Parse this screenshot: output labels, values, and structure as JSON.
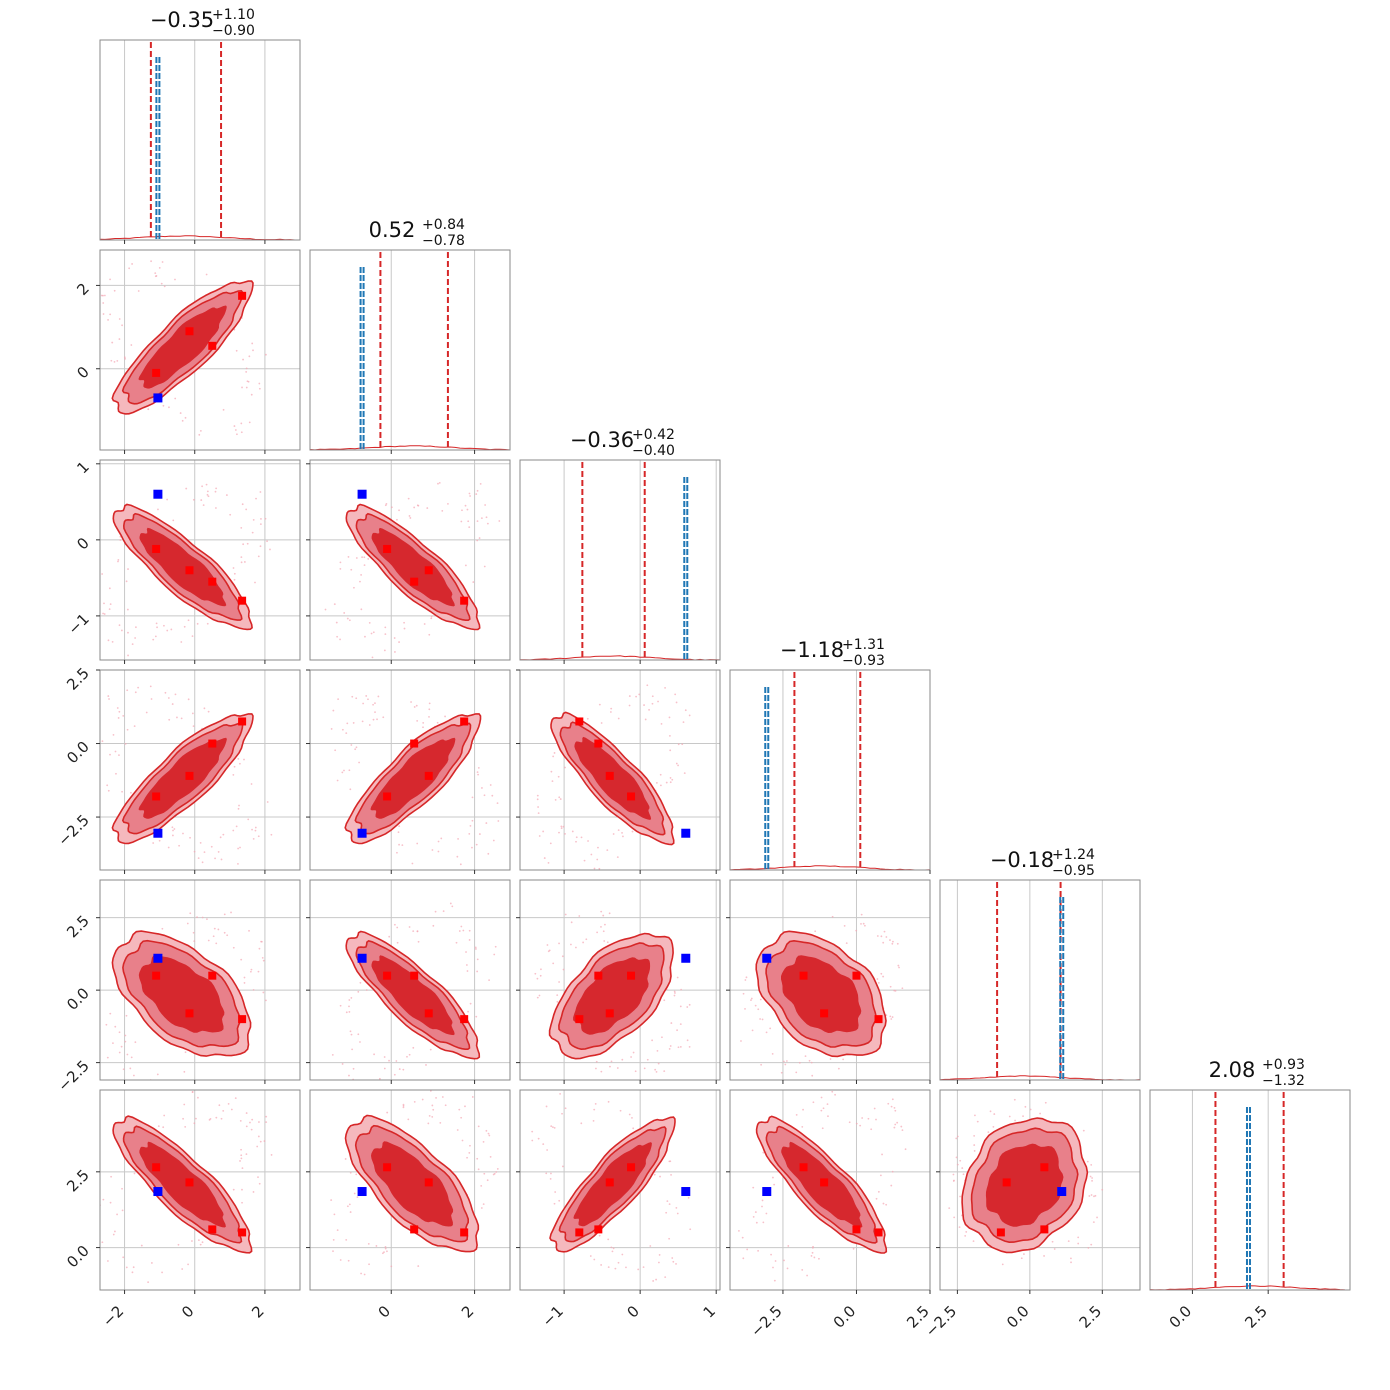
{
  "chart_data": {
    "type": "corner",
    "grid": true,
    "parameters": [
      {
        "title_median": "−0.35",
        "title_plus": "+1.10",
        "title_minus": "−0.90",
        "median": -0.35,
        "err_plus": 1.1,
        "err_minus": 0.9,
        "truth": -1.05,
        "range": [
          -2.7,
          3.0
        ]
      },
      {
        "title_median": "0.52",
        "title_plus": "+0.84",
        "title_minus": "−0.78",
        "median": 0.52,
        "err_plus": 0.84,
        "err_minus": 0.78,
        "truth": -0.7,
        "range": [
          -1.95,
          2.85
        ]
      },
      {
        "title_median": "−0.36",
        "title_plus": "+0.42",
        "title_minus": "−0.40",
        "median": -0.36,
        "err_plus": 0.42,
        "err_minus": 0.4,
        "truth": 0.6,
        "range": [
          -1.58,
          1.05
        ]
      },
      {
        "title_median": "−1.18",
        "title_plus": "+1.31",
        "title_minus": "−0.93",
        "median": -1.18,
        "err_plus": 1.31,
        "err_minus": 0.93,
        "truth": -3.05,
        "range": [
          -4.3,
          2.5
        ]
      },
      {
        "title_median": "−0.18",
        "title_plus": "+1.24",
        "title_minus": "−0.95",
        "median": -0.18,
        "err_plus": 1.24,
        "err_minus": 0.95,
        "truth": 1.1,
        "range": [
          -3.1,
          3.8
        ]
      },
      {
        "title_median": "2.08",
        "title_plus": "+0.93",
        "title_minus": "−1.32",
        "median": 2.08,
        "err_plus": 0.93,
        "err_minus": 1.32,
        "truth": 1.85,
        "range": [
          -1.4,
          5.2
        ]
      }
    ],
    "ticks": [
      {
        "values": [
          -2,
          0,
          2
        ],
        "labels": [
          "−2",
          "0",
          "2"
        ]
      },
      {
        "values": [
          0,
          2
        ],
        "labels": [
          "0",
          "2"
        ]
      },
      {
        "values": [
          -1,
          0,
          1
        ],
        "labels": [
          "−1",
          "0",
          "1"
        ]
      },
      {
        "values": [
          -2.5,
          0.0,
          2.5
        ],
        "labels": [
          "−2.5",
          "0.0",
          "2.5"
        ]
      },
      {
        "values": [
          -2.5,
          0.0,
          2.5
        ],
        "labels": [
          "−2.5",
          "0.0",
          "2.5"
        ]
      },
      {
        "values": [
          0.0,
          2.5
        ],
        "labels": [
          "0.0",
          "2.5"
        ]
      }
    ],
    "mode_points": [
      [
        -1.1,
        -0.1,
        -0.12,
        -1.8,
        0.5,
        2.65
      ],
      [
        -0.15,
        0.9,
        -0.4,
        -1.1,
        -0.8,
        2.15
      ],
      [
        0.5,
        0.55,
        -0.55,
        0.0,
        0.5,
        0.6
      ],
      [
        1.35,
        1.75,
        -0.8,
        0.75,
        -1.0,
        0.5
      ]
    ],
    "colors": {
      "contour_fill_outer": "#f5b8bd",
      "contour_fill_mid": "#e8808a",
      "contour_fill_inner": "#d6282e",
      "contour_line": "#d62728",
      "quantile_line": "#d62728",
      "truth_line": "#1f77b4",
      "truth_marker": "#0000ff",
      "mode_marker": "#ff0000",
      "scatter": "#f4a6b4"
    }
  }
}
